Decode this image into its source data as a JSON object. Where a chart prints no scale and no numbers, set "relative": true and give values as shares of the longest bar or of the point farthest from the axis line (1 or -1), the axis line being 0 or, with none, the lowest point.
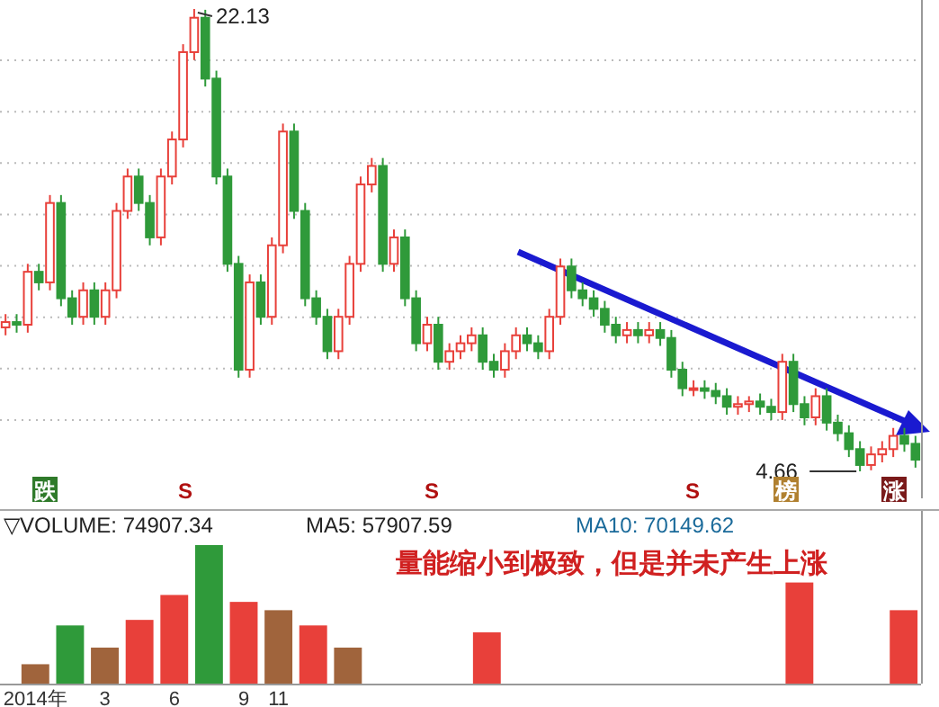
{
  "chart_data": [
    {
      "type": "candlestick",
      "categories": [
        null,
        null,
        null,
        null,
        null,
        null,
        null,
        null,
        null,
        null,
        null,
        null,
        null,
        null,
        null,
        null,
        null,
        null,
        null,
        null,
        null,
        null,
        null,
        null,
        null,
        null,
        null,
        null,
        null,
        null,
        null,
        null,
        null,
        null,
        null,
        null,
        null,
        null,
        null,
        null,
        null,
        null,
        null,
        null,
        null,
        null,
        null,
        null,
        null,
        null,
        null,
        null,
        null,
        null,
        null,
        null,
        null,
        null,
        null,
        null,
        null,
        null,
        null,
        null,
        null,
        null,
        null,
        null,
        null,
        null,
        null,
        null,
        null,
        null,
        null,
        null,
        null,
        null,
        null,
        null,
        null,
        null,
        null
      ],
      "ohlc": [
        [
          10.1,
          10.6,
          9.8,
          10.3
        ],
        [
          10.3,
          10.6,
          9.9,
          10.2
        ],
        [
          10.2,
          12.5,
          9.9,
          12.2
        ],
        [
          12.2,
          12.5,
          11.5,
          11.8
        ],
        [
          11.8,
          15.1,
          11.5,
          14.8
        ],
        [
          14.8,
          15.1,
          10.9,
          11.2
        ],
        [
          11.2,
          11.5,
          10.2,
          10.5
        ],
        [
          10.5,
          11.8,
          10.2,
          11.5
        ],
        [
          11.5,
          11.8,
          10.2,
          10.5
        ],
        [
          10.5,
          11.8,
          10.2,
          11.5
        ],
        [
          11.5,
          14.8,
          11.2,
          14.5
        ],
        [
          14.5,
          16.1,
          14.2,
          15.8
        ],
        [
          15.8,
          16.1,
          14.5,
          14.8
        ],
        [
          14.8,
          15.1,
          13.2,
          13.5
        ],
        [
          13.5,
          16.1,
          13.2,
          15.8
        ],
        [
          15.8,
          17.5,
          15.5,
          17.2
        ],
        [
          17.2,
          20.8,
          16.9,
          20.5
        ],
        [
          20.5,
          22.13,
          20.2,
          21.8
        ],
        [
          21.8,
          22.1,
          19.2,
          19.5
        ],
        [
          19.5,
          19.8,
          15.5,
          15.8
        ],
        [
          15.8,
          16.1,
          12.2,
          12.5
        ],
        [
          12.5,
          12.8,
          8.2,
          8.5
        ],
        [
          8.5,
          12.1,
          8.2,
          11.8
        ],
        [
          11.8,
          12.1,
          10.2,
          10.5
        ],
        [
          10.5,
          13.5,
          10.2,
          13.2
        ],
        [
          13.2,
          17.8,
          12.9,
          17.5
        ],
        [
          17.5,
          17.8,
          14.2,
          14.5
        ],
        [
          14.5,
          14.8,
          10.9,
          11.2
        ],
        [
          11.2,
          11.5,
          10.2,
          10.5
        ],
        [
          10.5,
          10.8,
          8.9,
          9.2
        ],
        [
          9.2,
          10.8,
          8.9,
          10.5
        ],
        [
          10.5,
          12.8,
          10.2,
          12.5
        ],
        [
          12.5,
          15.8,
          12.2,
          15.5
        ],
        [
          15.5,
          16.5,
          15.2,
          16.2
        ],
        [
          16.2,
          16.5,
          12.2,
          12.5
        ],
        [
          12.5,
          13.8,
          12.2,
          13.5
        ],
        [
          13.5,
          13.8,
          10.9,
          11.2
        ],
        [
          11.2,
          11.5,
          9.2,
          9.5
        ],
        [
          9.5,
          10.5,
          9.2,
          10.2
        ],
        [
          10.2,
          10.5,
          8.5,
          8.8
        ],
        [
          8.8,
          9.5,
          8.5,
          9.2
        ],
        [
          9.2,
          9.8,
          8.9,
          9.5
        ],
        [
          9.5,
          10.1,
          9.2,
          9.8
        ],
        [
          9.8,
          10.1,
          8.5,
          8.8
        ],
        [
          8.8,
          9.1,
          8.2,
          8.5
        ],
        [
          8.5,
          9.5,
          8.2,
          9.2
        ],
        [
          9.2,
          10.1,
          8.9,
          9.8
        ],
        [
          9.8,
          10.1,
          9.2,
          9.5
        ],
        [
          9.5,
          9.8,
          8.9,
          9.2
        ],
        [
          9.2,
          10.8,
          8.9,
          10.5
        ],
        [
          10.5,
          12.7,
          10.2,
          12.4
        ],
        [
          12.4,
          12.7,
          11.2,
          11.5
        ],
        [
          11.5,
          11.8,
          10.9,
          11.2
        ],
        [
          11.2,
          11.5,
          10.5,
          10.8
        ],
        [
          10.8,
          11.1,
          9.9,
          10.2
        ],
        [
          10.2,
          10.5,
          9.5,
          9.8
        ],
        [
          9.8,
          10.3,
          9.5,
          10.0
        ],
        [
          10.0,
          10.3,
          9.5,
          9.8
        ],
        [
          9.8,
          10.3,
          9.5,
          10.0
        ],
        [
          10.0,
          10.3,
          9.4,
          9.7
        ],
        [
          9.7,
          10.0,
          8.2,
          8.5
        ],
        [
          8.5,
          8.8,
          7.5,
          7.8
        ],
        [
          7.8,
          8.1,
          7.5,
          7.8
        ],
        [
          7.8,
          8.1,
          7.4,
          7.7
        ],
        [
          7.7,
          8.0,
          7.2,
          7.5
        ],
        [
          7.5,
          7.8,
          6.8,
          7.1
        ],
        [
          7.1,
          7.5,
          6.8,
          7.2
        ],
        [
          7.2,
          7.5,
          6.9,
          7.3
        ],
        [
          7.3,
          7.6,
          6.8,
          7.1
        ],
        [
          7.1,
          7.4,
          6.6,
          6.9
        ],
        [
          6.9,
          9.1,
          6.6,
          8.8
        ],
        [
          8.8,
          9.1,
          6.9,
          7.2
        ],
        [
          7.2,
          7.5,
          6.4,
          6.7
        ],
        [
          6.7,
          7.8,
          6.4,
          7.5
        ],
        [
          7.5,
          7.8,
          6.2,
          6.5
        ],
        [
          6.5,
          6.8,
          5.8,
          6.1
        ],
        [
          6.1,
          6.4,
          5.2,
          5.5
        ],
        [
          5.5,
          5.8,
          4.66,
          4.9
        ],
        [
          4.9,
          5.6,
          4.7,
          5.3
        ],
        [
          5.3,
          5.8,
          5.0,
          5.5
        ],
        [
          5.5,
          6.3,
          5.2,
          6.0
        ],
        [
          6.0,
          6.3,
          5.4,
          5.7
        ],
        [
          5.7,
          6.0,
          4.8,
          5.1
        ]
      ],
      "colors": [
        "#e8403a",
        "#2f9a3a",
        "#e8403a",
        "#2f9a3a",
        "#e8403a",
        "#2f9a3a",
        "#2f9a3a",
        "#e8403a",
        "#2f9a3a",
        "#e8403a",
        "#e8403a",
        "#e8403a",
        "#2f9a3a",
        "#2f9a3a",
        "#e8403a",
        "#e8403a",
        "#e8403a",
        "#e8403a",
        "#2f9a3a",
        "#2f9a3a",
        "#2f9a3a",
        "#2f9a3a",
        "#e8403a",
        "#2f9a3a",
        "#e8403a",
        "#e8403a",
        "#2f9a3a",
        "#2f9a3a",
        "#2f9a3a",
        "#2f9a3a",
        "#e8403a",
        "#e8403a",
        "#e8403a",
        "#e8403a",
        "#2f9a3a",
        "#e8403a",
        "#2f9a3a",
        "#2f9a3a",
        "#e8403a",
        "#2f9a3a",
        "#e8403a",
        "#e8403a",
        "#e8403a",
        "#2f9a3a",
        "#2f9a3a",
        "#e8403a",
        "#e8403a",
        "#2f9a3a",
        "#2f9a3a",
        "#e8403a",
        "#e8403a",
        "#2f9a3a",
        "#2f9a3a",
        "#2f9a3a",
        "#2f9a3a",
        "#2f9a3a",
        "#e8403a",
        "#2f9a3a",
        "#e8403a",
        "#2f9a3a",
        "#2f9a3a",
        "#2f9a3a",
        "#e8403a",
        "#2f9a3a",
        "#2f9a3a",
        "#2f9a3a",
        "#e8403a",
        "#e8403a",
        "#2f9a3a",
        "#2f9a3a",
        "#e8403a",
        "#2f9a3a",
        "#2f9a3a",
        "#e8403a",
        "#2f9a3a",
        "#2f9a3a",
        "#2f9a3a",
        "#2f9a3a",
        "#e8403a",
        "#e8403a",
        "#e8403a",
        "#2f9a3a",
        "#2f9a3a"
      ],
      "grid": "y",
      "annotations": [
        "22.13",
        "4.66",
        "跌",
        "S",
        "S",
        "S",
        "榜",
        "涨"
      ]
    },
    {
      "type": "bar",
      "relative": true,
      "categories": [
        "2014年",
        null,
        "3",
        null,
        "6",
        null,
        "9",
        "11",
        null,
        null,
        null,
        null,
        null,
        null,
        null,
        null,
        null,
        null,
        null,
        null,
        null,
        null,
        null,
        null,
        null,
        null
      ],
      "values": [
        0.14,
        0.42,
        0.26,
        0.46,
        0.64,
        1,
        0.59,
        0.53,
        0.42,
        0.26,
        null,
        null,
        null,
        0.37,
        null,
        null,
        null,
        null,
        null,
        null,
        null,
        null,
        0.73,
        null,
        null,
        0.53
      ],
      "colors": [
        "#a0643c",
        "#2f9a3a",
        "#a0643c",
        "#e8403a",
        "#e8403a",
        "#2f9a3a",
        "#e8403a",
        "#a0643c",
        "#e8403a",
        "#a0643c",
        null,
        null,
        null,
        "#e8403a",
        null,
        null,
        null,
        null,
        null,
        null,
        null,
        null,
        "#e8403a",
        null,
        null,
        "#e8403a"
      ],
      "annotations": [
        "▽VOLUME: 74907.34",
        "MA5: 57907.59",
        "MA10: 70149.62",
        "量能缩小到极致，但是并未产生上涨"
      ]
    }
  ]
}
